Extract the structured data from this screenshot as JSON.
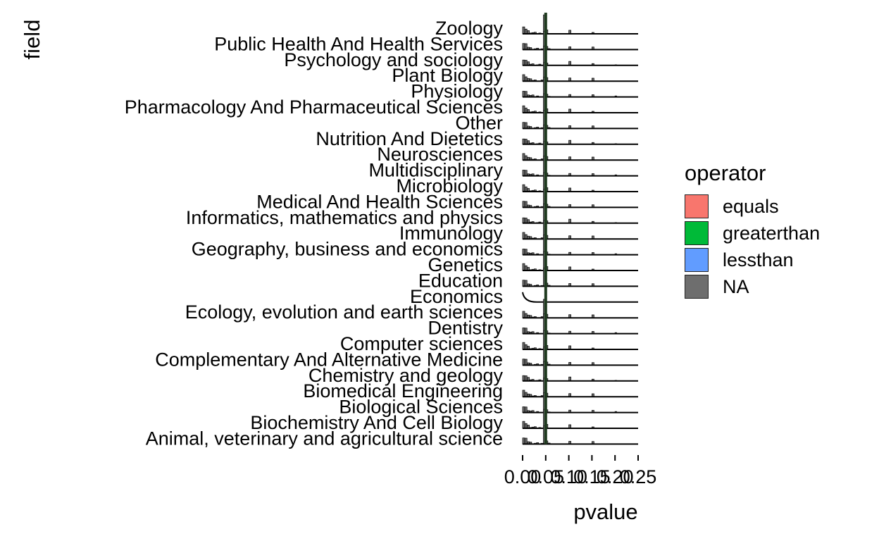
{
  "chart_data": {
    "type": "ridgeline-histogram",
    "xlabel": "pvalue",
    "ylabel": "field",
    "xlim": [
      0,
      0.25
    ],
    "x_ticks": [
      "0.00",
      "0.05",
      "0.10",
      "0.15",
      "0.20",
      "0.25"
    ],
    "categories": [
      "Zoology",
      "Public Health And Health Services",
      "Psychology and sociology",
      "Plant Biology",
      "Physiology",
      "Pharmacology And Pharmaceutical Sciences",
      "Other",
      "Nutrition And Dietetics",
      "Neurosciences",
      "Multidisciplinary",
      "Microbiology",
      "Medical And Health Sciences",
      "Informatics, mathematics and physics",
      "Immunology",
      "Geography, business and economics",
      "Genetics",
      "Education",
      "Economics",
      "Ecology, evolution and earth sciences",
      "Dentistry",
      "Computer sciences",
      "Complementary And Alternative Medicine",
      "Chemistry and geology",
      "Biomedical Engineering",
      "Biological Sciences",
      "Biochemistry And Cell Biology",
      "Animal, veterinary and agricultural science"
    ],
    "legend": {
      "title": "operator",
      "entries": [
        {
          "label": "equals",
          "color": "#F8766D"
        },
        {
          "label": "greaterthan",
          "color": "#00BA38"
        },
        {
          "label": "lessthan",
          "color": "#619CFF"
        },
        {
          "label": "NA",
          "color": "#6E6E6E"
        }
      ],
      "placement": "right"
    },
    "histogram_bins": [
      0.0,
      0.005,
      0.01,
      0.015,
      0.02,
      0.025,
      0.03,
      0.035,
      0.04,
      0.045,
      0.05,
      0.055,
      0.1,
      0.15,
      0.2
    ],
    "relative_density": [
      0.35,
      0.3,
      0.18,
      0.12,
      0.1,
      0.08,
      0.07,
      0.06,
      0.06,
      1.0,
      0.2,
      0.05,
      0.2,
      0.15,
      0.05
    ],
    "dominant_peak_at": 0.05
  }
}
